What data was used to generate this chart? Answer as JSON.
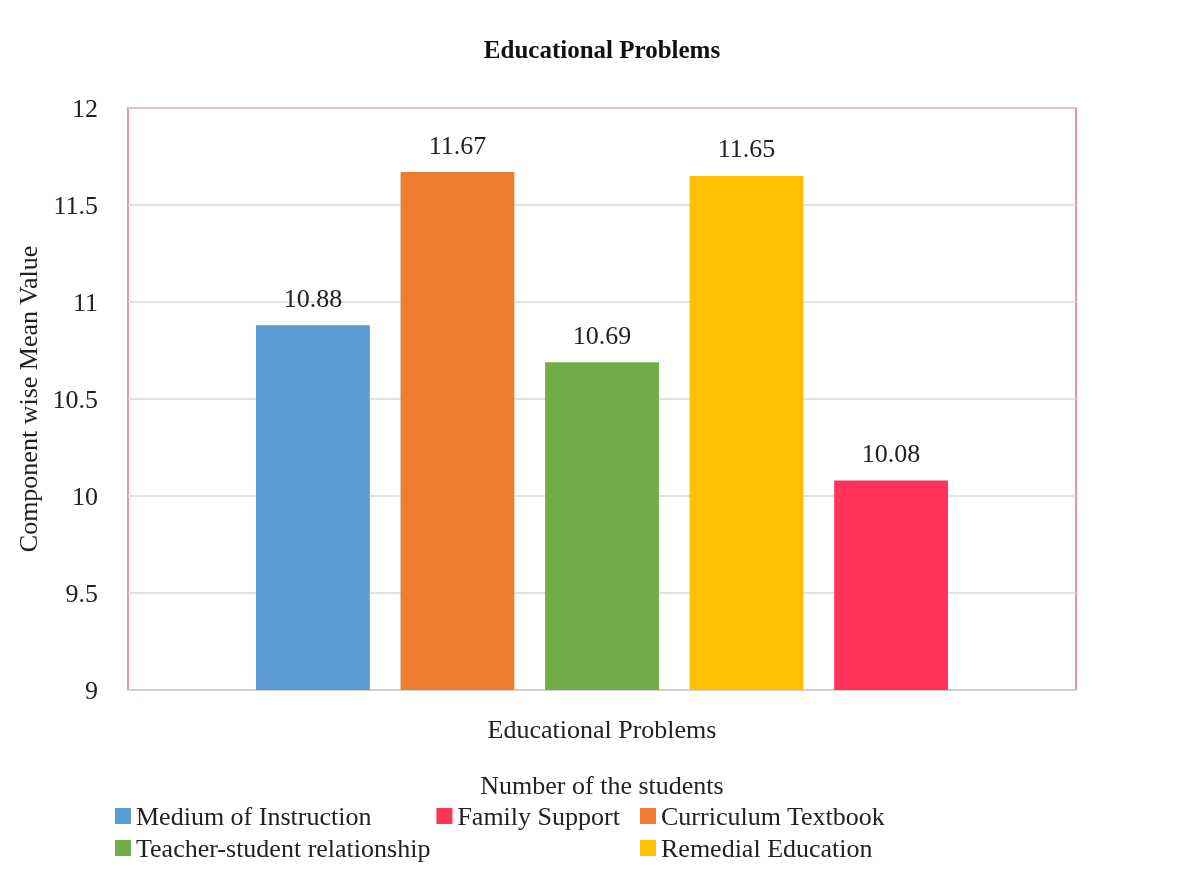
{
  "chart_data": {
    "type": "bar",
    "title": "Educational Problems",
    "xlabel": "Number of the students",
    "ylabel": "Component wise Mean Value",
    "categories": [
      "Educational Problems"
    ],
    "series": [
      {
        "name": "Medium of Instruction",
        "color": "#5b9bd5",
        "values": [
          10.88
        ]
      },
      {
        "name": "Curriculum Textbook",
        "color": "#ed7d31",
        "values": [
          11.67
        ]
      },
      {
        "name": "Teacher-student relationship",
        "color": "#70ad47",
        "values": [
          10.69
        ]
      },
      {
        "name": "Remedial Education",
        "color": "#ffc000",
        "values": [
          11.65
        ]
      },
      {
        "name": "Family Support",
        "color": "#ff3358",
        "values": [
          10.08
        ]
      }
    ],
    "ylim": [
      9,
      12
    ],
    "yticks": [
      9,
      9.5,
      10,
      10.5,
      11,
      11.5,
      12
    ],
    "grid": "y",
    "data_labels": true,
    "legend": "bottom"
  }
}
